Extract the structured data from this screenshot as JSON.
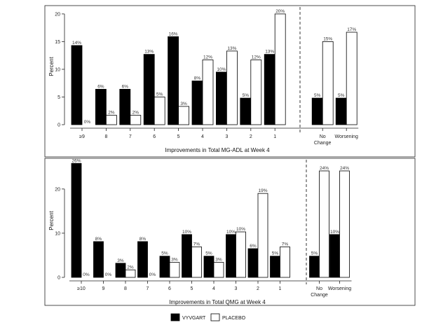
{
  "legend": {
    "series_a": "VYVGART",
    "series_b": "PLACEBO"
  },
  "colors": {
    "series_a": "#000000",
    "series_b": "#ffffff",
    "frame": "#222222"
  },
  "chart_data": [
    {
      "type": "bar",
      "xlabel": "Improvements in Total MG-ADL at Week 4",
      "ylabel": "Percent",
      "ylim": [
        0,
        21
      ],
      "yticks": [
        0,
        5,
        10,
        15,
        20
      ],
      "categories": [
        [
          "≥9"
        ],
        [
          "8"
        ],
        [
          "7"
        ],
        [
          "6"
        ],
        [
          "5"
        ],
        [
          "4"
        ],
        [
          "3"
        ],
        [
          "2"
        ],
        [
          "1"
        ],
        [
          "No",
          "Change"
        ],
        [
          "Worsening"
        ]
      ],
      "separator_after_index": 8,
      "series": [
        {
          "name": "VYVGART",
          "values": [
            14.3,
            6.4,
            6.4,
            12.7,
            15.9,
            7.9,
            9.5,
            4.8,
            12.7,
            4.8,
            4.8
          ],
          "labels": [
            "14%",
            "6%",
            "6%",
            "13%",
            "16%",
            "8%",
            "10%",
            "5%",
            "13%",
            "5%",
            "5%"
          ]
        },
        {
          "name": "PLACEBO",
          "values": [
            0,
            1.7,
            1.7,
            5.0,
            3.3,
            11.7,
            13.3,
            11.7,
            20.0,
            15.0,
            16.7
          ],
          "labels": [
            "0%",
            "2%",
            "2%",
            "5%",
            "3%",
            "12%",
            "13%",
            "12%",
            "20%",
            "15%",
            "17%"
          ]
        }
      ]
    },
    {
      "type": "bar",
      "xlabel": "Improvements in Total QMG at Week 4",
      "ylabel": "Percent",
      "ylim": [
        0,
        26
      ],
      "yticks": [
        0,
        10,
        20
      ],
      "categories": [
        [
          "≥10"
        ],
        [
          "9"
        ],
        [
          "8"
        ],
        [
          "7"
        ],
        [
          "6"
        ],
        [
          "5"
        ],
        [
          "4"
        ],
        [
          "3"
        ],
        [
          "2"
        ],
        [
          "1"
        ],
        [
          "No",
          "Change"
        ],
        [
          "Worsening"
        ]
      ],
      "separator_after_index": 9,
      "series": [
        {
          "name": "VYVGART",
          "values": [
            25.8,
            8.1,
            3.2,
            8.1,
            4.8,
            9.7,
            4.8,
            9.7,
            6.5,
            4.8,
            4.8,
            9.7
          ],
          "labels": [
            "26%",
            "8%",
            "3%",
            "8%",
            "5%",
            "10%",
            "5%",
            "10%",
            "6%",
            "5%",
            "5%",
            "10%"
          ]
        },
        {
          "name": "PLACEBO",
          "values": [
            0,
            0,
            1.7,
            0,
            3.4,
            6.9,
            3.4,
            10.3,
            19.0,
            6.9,
            24.1,
            24.1
          ],
          "labels": [
            "0%",
            "0%",
            "2%",
            "0%",
            "3%",
            "7%",
            "3%",
            "10%",
            "19%",
            "7%",
            "24%",
            "24%"
          ]
        }
      ]
    }
  ]
}
